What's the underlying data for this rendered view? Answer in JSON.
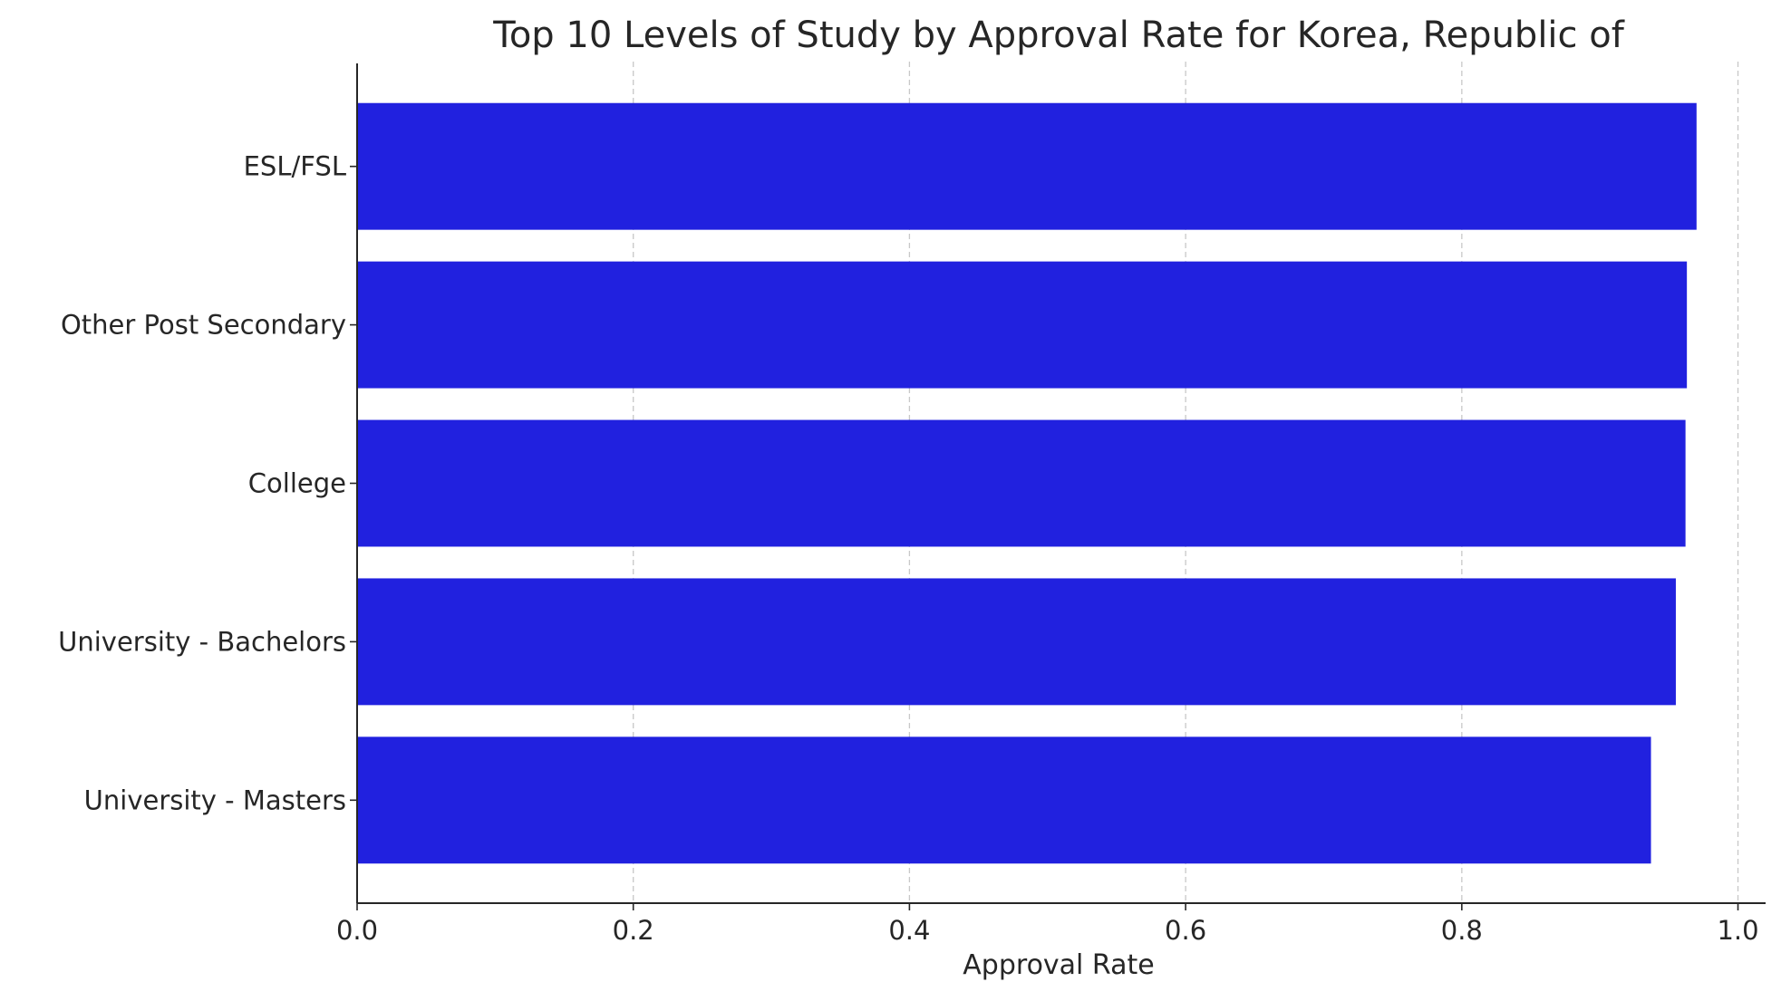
{
  "chart_data": {
    "type": "bar",
    "orientation": "horizontal",
    "title": "Top 10 Levels of Study by Approval Rate for Korea, Republic of",
    "xlabel": "Approval Rate",
    "ylabel": "",
    "xlim": [
      0,
      1.02
    ],
    "xticks": [
      "0.0",
      "0.2",
      "0.4",
      "0.6",
      "0.8",
      "1.0"
    ],
    "grid": "x",
    "categories": [
      "ESL/FSL",
      "Other Post Secondary",
      "College",
      "University - Bachelors",
      "University - Masters"
    ],
    "values": [
      0.97,
      0.963,
      0.962,
      0.955,
      0.937
    ],
    "bar_color": "#2121df"
  }
}
